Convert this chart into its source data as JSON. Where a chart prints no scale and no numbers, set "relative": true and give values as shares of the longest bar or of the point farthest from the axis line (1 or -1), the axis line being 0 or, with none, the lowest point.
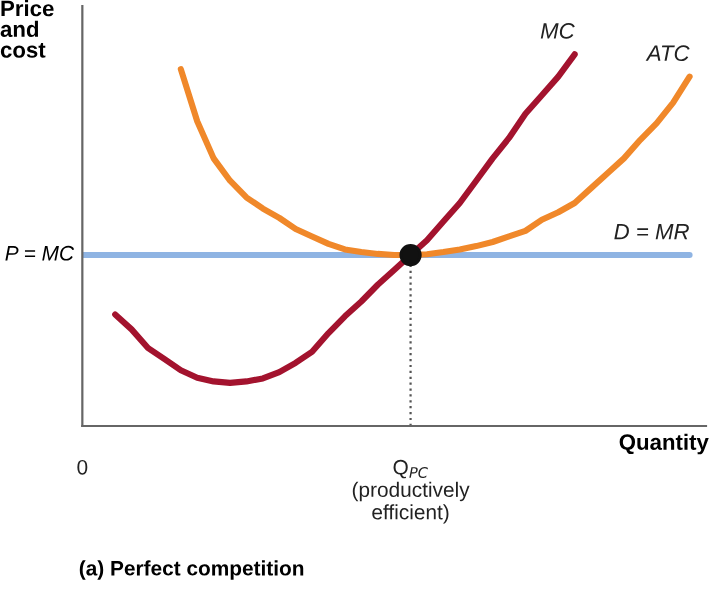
{
  "chart_data": {
    "type": "line",
    "relative": true,
    "title": "(a) Perfect competition",
    "ylabel": "Price\nand\ncost",
    "xlabel": "Quantity",
    "categories": [
      "0",
      null,
      null,
      null,
      null,
      null,
      null,
      null,
      null,
      null,
      null,
      null,
      null,
      null,
      null,
      null,
      null,
      null,
      null,
      null,
      "Q$_{PC}$\n(productively\nefficient)",
      null,
      null,
      null,
      null,
      null,
      null,
      null,
      null,
      null,
      null,
      null,
      null,
      null,
      null,
      null,
      null,
      null
    ],
    "grid": false,
    "legend": false,
    "tick_labels": "x",
    "annotations": [
      {
        "text": "P = MC",
        "x": "0",
        "y": 0.46
      }
    ],
    "series": [
      {
        "name": "D = MR",
        "color": "#8fb4e3",
        "values": [
          0.46,
          0.46,
          0.46,
          0.46,
          0.46,
          0.46,
          0.46,
          0.46,
          0.46,
          0.46,
          0.46,
          0.46,
          0.46,
          0.46,
          0.46,
          0.46,
          0.46,
          0.46,
          0.46,
          0.46,
          0.46,
          0.46,
          0.46,
          0.46,
          0.46,
          0.46,
          0.46,
          0.46,
          0.46,
          0.46,
          0.46,
          0.46,
          0.46,
          0.46,
          0.46,
          0.46,
          0.46,
          0.46
        ]
      },
      {
        "name": "ATC",
        "color": "#f0882a",
        "values": [
          null,
          null,
          null,
          null,
          null,
          null,
          0.96,
          0.82,
          0.72,
          0.66,
          0.615,
          0.585,
          0.56,
          0.53,
          0.51,
          0.49,
          0.475,
          0.468,
          0.463,
          0.46,
          0.46,
          0.462,
          0.468,
          0.475,
          0.484,
          0.495,
          0.51,
          0.525,
          0.555,
          0.575,
          0.6,
          0.64,
          0.68,
          0.72,
          0.77,
          0.815,
          0.87,
          0.94
        ]
      },
      {
        "name": "MC",
        "color": "#a3132e",
        "values": [
          null,
          null,
          0.3,
          0.26,
          0.21,
          0.18,
          0.15,
          0.13,
          0.12,
          0.116,
          0.12,
          0.128,
          0.145,
          0.17,
          0.2,
          0.25,
          0.295,
          0.335,
          0.38,
          0.42,
          0.46,
          0.5,
          0.55,
          0.6,
          0.66,
          0.72,
          0.775,
          0.84,
          0.89,
          0.94,
          1.0,
          null,
          null,
          null,
          null,
          null,
          null,
          null
        ]
      },
      {
        "type": "lollipop",
        "color": "#111111",
        "marker": "circle",
        "line_style": "dotted",
        "values": [
          null,
          null,
          null,
          null,
          null,
          null,
          null,
          null,
          null,
          null,
          null,
          null,
          null,
          null,
          null,
          null,
          null,
          null,
          null,
          null,
          0.46,
          null,
          null,
          null,
          null,
          null,
          null,
          null,
          null,
          null,
          null,
          null,
          null,
          null,
          null,
          null,
          null,
          null
        ]
      }
    ]
  }
}
